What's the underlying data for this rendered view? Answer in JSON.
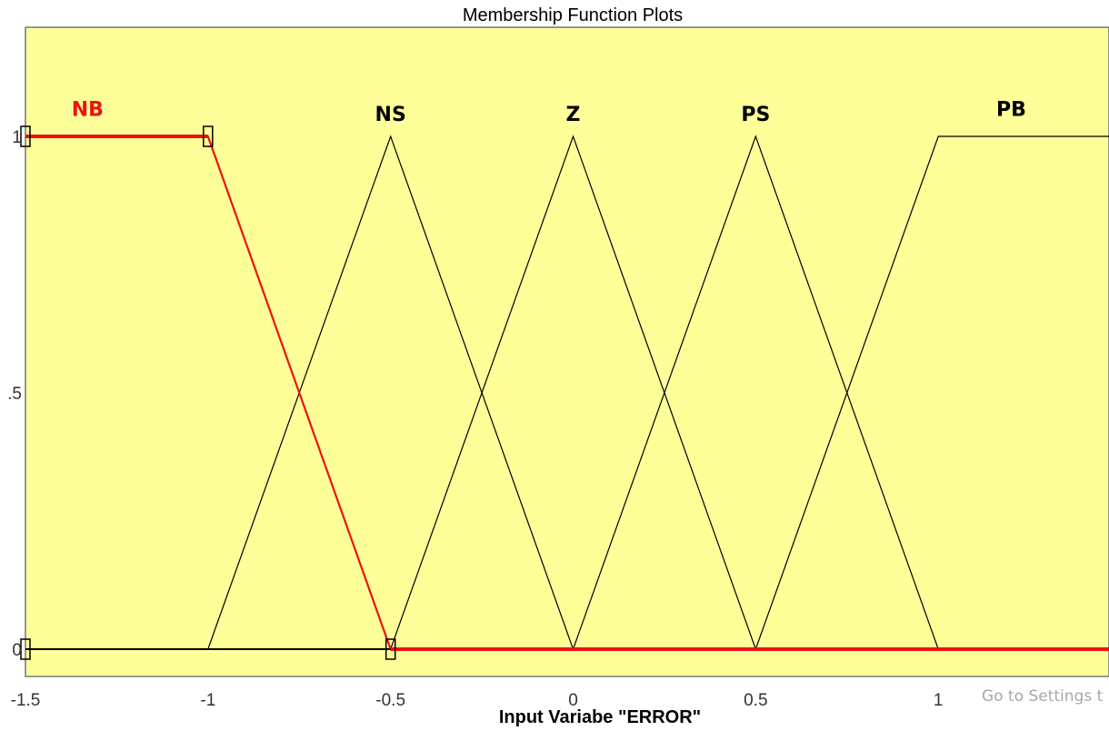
{
  "chart_data": {
    "type": "line",
    "title": "Membership Function Plots",
    "xlabel": "Input Variabe \"ERROR\"",
    "ylabel": "",
    "xlim": [
      -1.5,
      1.5
    ],
    "ylim": [
      -0.05,
      1.2
    ],
    "x_ticks": [
      {
        "value": -1.5,
        "label": "-1.5"
      },
      {
        "value": -1,
        "label": "-1"
      },
      {
        "value": -0.5,
        "label": "-0.5"
      },
      {
        "value": 0,
        "label": "0"
      },
      {
        "value": 0.5,
        "label": "0.5"
      },
      {
        "value": 1,
        "label": "1"
      }
    ],
    "y_ticks": [
      {
        "value": 0,
        "label": "0"
      },
      {
        "value": 0.5,
        "label": ".5"
      },
      {
        "value": 1,
        "label": "1"
      }
    ],
    "grid": false,
    "series": [
      {
        "name": "NB",
        "selected": true,
        "x": [
          -1.5,
          -1,
          -0.5,
          1.5
        ],
        "y": [
          1,
          1,
          0,
          0
        ]
      },
      {
        "name": "NS",
        "selected": false,
        "x": [
          -1.5,
          -1,
          -0.5,
          0,
          1.5
        ],
        "y": [
          0,
          0,
          1,
          0,
          0
        ]
      },
      {
        "name": "Z",
        "selected": false,
        "x": [
          -1.5,
          -0.5,
          0,
          0.5,
          1.5
        ],
        "y": [
          0,
          0,
          1,
          0,
          0
        ]
      },
      {
        "name": "PS",
        "selected": false,
        "x": [
          -1.5,
          0,
          0.5,
          1,
          1.5
        ],
        "y": [
          0,
          0,
          1,
          0,
          0
        ]
      },
      {
        "name": "PB",
        "selected": false,
        "x": [
          -1.5,
          0.5,
          1,
          1.5
        ],
        "y": [
          0,
          0,
          1,
          1
        ]
      }
    ],
    "labels": [
      {
        "text": "NB",
        "x": -1.33,
        "y": 1.04
      },
      {
        "text": "NS",
        "x": -0.5,
        "y": 1.03
      },
      {
        "text": "Z",
        "x": 0,
        "y": 1.03
      },
      {
        "text": "PS",
        "x": 0.5,
        "y": 1.03
      },
      {
        "text": "PB",
        "x": 1.2,
        "y": 1.04
      }
    ],
    "selected_points": [
      {
        "x": -1.5,
        "y": 1
      },
      {
        "x": -1,
        "y": 1
      },
      {
        "x": -0.5,
        "y": 0
      },
      {
        "x": -1.5,
        "y": 0
      }
    ]
  },
  "watermark": "Go to Settings t",
  "colors": {
    "plot_bg": "#ffff99",
    "selected": "#ee1111",
    "line": "#000000",
    "frame": "#777777"
  }
}
